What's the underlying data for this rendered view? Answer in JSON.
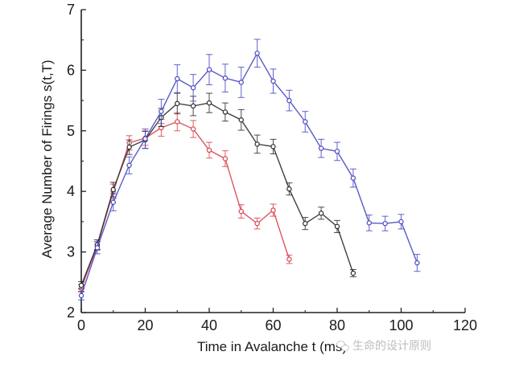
{
  "chart_data": {
    "type": "line",
    "title": "",
    "xlabel": "Time in Avalanche t (ms)",
    "ylabel": "Average Number of Firings s(t,T)",
    "xlim": [
      0,
      120
    ],
    "ylim": [
      2,
      7
    ],
    "xticks": [
      0,
      20,
      40,
      60,
      80,
      100,
      120
    ],
    "yticks": [
      2,
      3,
      4,
      5,
      6,
      7
    ],
    "grid": false,
    "legend": "none",
    "series": [
      {
        "name": "red",
        "color": "#d9434f",
        "x": [
          0,
          5,
          10,
          15,
          20,
          25,
          30,
          35,
          40,
          45,
          50,
          55,
          60,
          65
        ],
        "y": [
          2.4,
          3.1,
          4.0,
          4.8,
          4.88,
          5.05,
          5.15,
          5.03,
          4.68,
          4.54,
          3.67,
          3.47,
          3.69,
          2.88
        ],
        "err": [
          0.06,
          0.07,
          0.12,
          0.12,
          0.12,
          0.14,
          0.15,
          0.14,
          0.13,
          0.13,
          0.11,
          0.09,
          0.1,
          0.07
        ]
      },
      {
        "name": "black",
        "color": "#2b2b2b",
        "x": [
          0,
          5,
          10,
          15,
          20,
          25,
          30,
          35,
          40,
          45,
          50,
          55,
          60,
          65,
          70,
          75,
          80,
          85
        ],
        "y": [
          2.45,
          3.12,
          4.03,
          4.73,
          4.85,
          5.22,
          5.45,
          5.41,
          5.46,
          5.31,
          5.18,
          4.78,
          4.74,
          4.04,
          3.47,
          3.64,
          3.42,
          2.65
        ],
        "err": [
          0.06,
          0.08,
          0.12,
          0.12,
          0.14,
          0.15,
          0.17,
          0.16,
          0.16,
          0.15,
          0.17,
          0.15,
          0.12,
          0.1,
          0.1,
          0.1,
          0.1,
          0.06
        ]
      },
      {
        "name": "blue",
        "color": "#4747c2",
        "x": [
          0,
          5,
          10,
          15,
          20,
          25,
          30,
          35,
          40,
          45,
          50,
          55,
          60,
          65,
          70,
          75,
          80,
          85,
          90,
          95,
          100,
          105
        ],
        "y": [
          2.28,
          3.07,
          3.82,
          4.43,
          4.87,
          5.32,
          5.86,
          5.71,
          6.01,
          5.87,
          5.8,
          6.28,
          5.82,
          5.5,
          5.15,
          4.71,
          4.66,
          4.22,
          3.48,
          3.47,
          3.5,
          2.82
        ],
        "err": [
          0.07,
          0.1,
          0.14,
          0.14,
          0.16,
          0.2,
          0.23,
          0.22,
          0.25,
          0.23,
          0.25,
          0.23,
          0.2,
          0.17,
          0.17,
          0.15,
          0.15,
          0.15,
          0.13,
          0.12,
          0.12,
          0.14
        ]
      }
    ]
  },
  "watermark": {
    "text": "生命的设计原则",
    "icon": "wechat-icon"
  }
}
